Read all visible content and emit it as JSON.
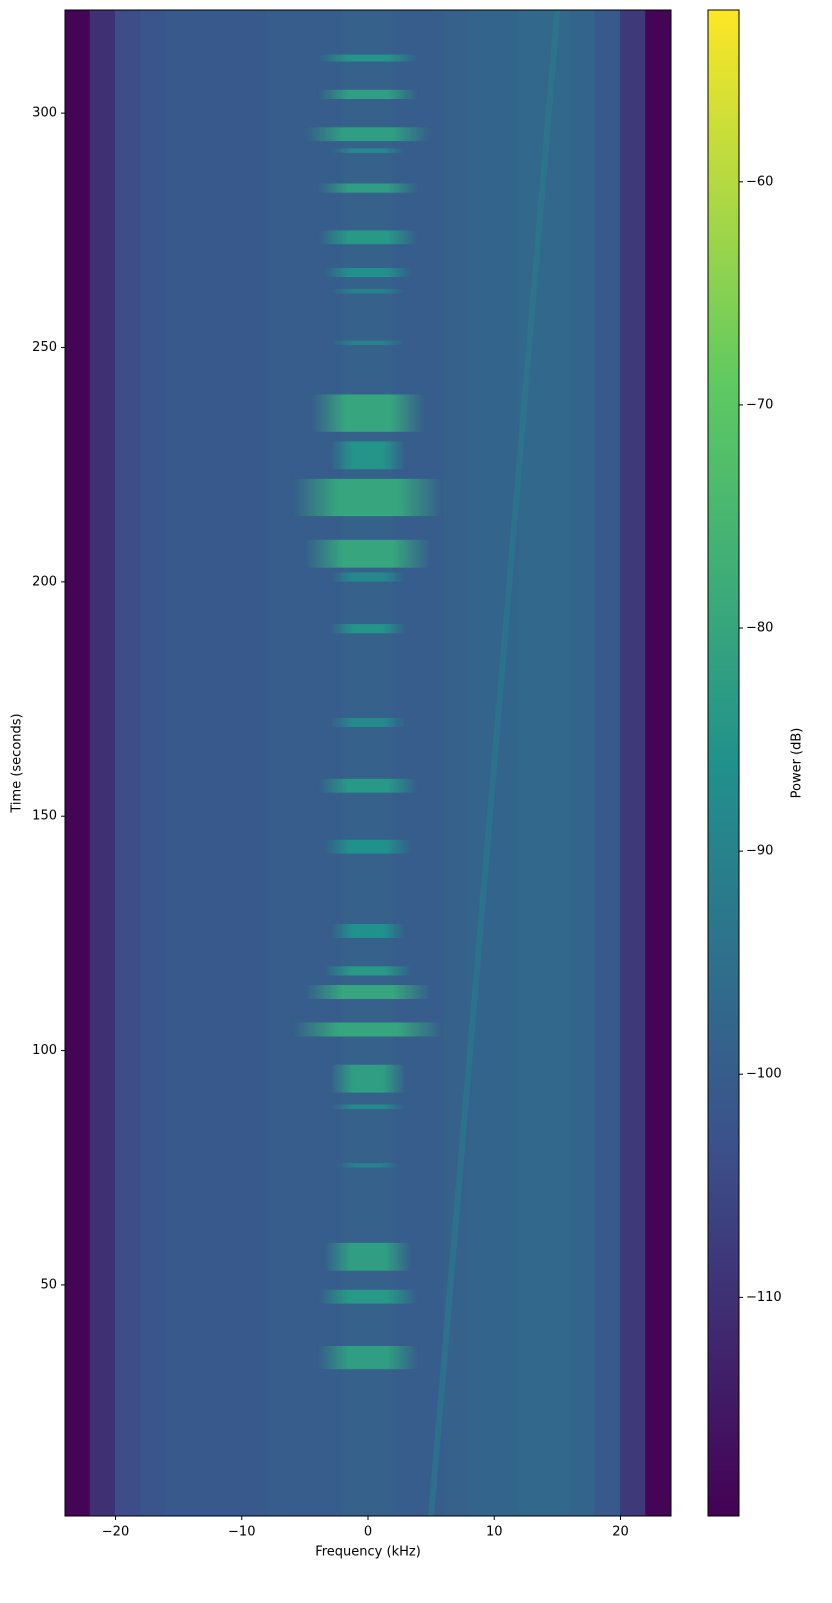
{
  "chart_data": {
    "type": "spectrogram",
    "xlabel": "Frequency (kHz)",
    "ylabel": "Time (seconds)",
    "colorbar_label": "Power (dB)",
    "xlim": [
      -24,
      24
    ],
    "ylim": [
      0.7,
      322
    ],
    "xticks": [
      {
        "value": -20,
        "label": "−20"
      },
      {
        "value": -10,
        "label": "−10"
      },
      0,
      10,
      20
    ],
    "yticks": [
      50,
      100,
      150,
      200,
      250,
      300
    ],
    "clim": [
      -119.8,
      -52.3
    ],
    "cticks": [
      {
        "value": -110,
        "label": "−110"
      },
      {
        "value": -100,
        "label": "−100"
      },
      {
        "value": -90,
        "label": "−90"
      },
      {
        "value": -80,
        "label": "−80"
      },
      {
        "value": -70,
        "label": "−70"
      },
      {
        "value": -60,
        "label": "−60"
      }
    ],
    "colormap": [
      "#440154",
      "#3b528b",
      "#21918c",
      "#5ec962",
      "#fde725"
    ],
    "x": [
      -23,
      -21,
      -19,
      -17,
      -15,
      -13,
      -11,
      -9,
      -7,
      -5,
      -3,
      -1,
      1,
      3,
      5,
      7,
      9,
      11,
      13,
      15,
      17,
      19,
      21,
      23
    ],
    "values": [
      -119,
      -110,
      -104,
      -102,
      -101,
      -101,
      -101,
      -101,
      -100,
      -100,
      -100,
      -99,
      -99,
      -100,
      -100,
      -99,
      -98,
      -98,
      -97,
      -97,
      -98,
      -101,
      -108,
      -119
    ],
    "bursts": {
      "start": [
        311,
        303,
        294,
        291.5,
        283,
        272,
        265,
        261.5,
        250.5,
        232,
        224,
        214,
        203,
        200,
        189,
        169,
        155,
        142,
        124,
        116,
        111,
        103,
        91,
        87.5,
        75,
        53,
        46,
        32
      ],
      "end": [
        312.5,
        305,
        297,
        292.5,
        285,
        275,
        267,
        262.5,
        251.5,
        240,
        230,
        222,
        209,
        202,
        191,
        171,
        158,
        145,
        127,
        118,
        114,
        106,
        97,
        88.5,
        76,
        59,
        49,
        37
      ],
      "halfwidth": [
        4,
        4,
        5,
        3,
        4,
        4,
        3.5,
        3,
        3,
        4.5,
        3,
        6,
        5,
        3,
        3,
        3,
        4,
        3.5,
        3,
        3.5,
        5,
        6,
        3,
        3,
        2.5,
        3.5,
        4,
        4
      ],
      "power": [
        -85,
        -82,
        -82,
        -88,
        -82,
        -84,
        -86,
        -90,
        -90,
        -80,
        -85,
        -80,
        -80,
        -88,
        -85,
        -88,
        -84,
        -86,
        -86,
        -84,
        -80,
        -80,
        -82,
        -88,
        -90,
        -82,
        -84,
        -82
      ]
    },
    "ridge": {
      "x": [
        5,
        15
      ],
      "y": [
        0.7,
        322
      ],
      "color": "#2a7c8e"
    }
  }
}
